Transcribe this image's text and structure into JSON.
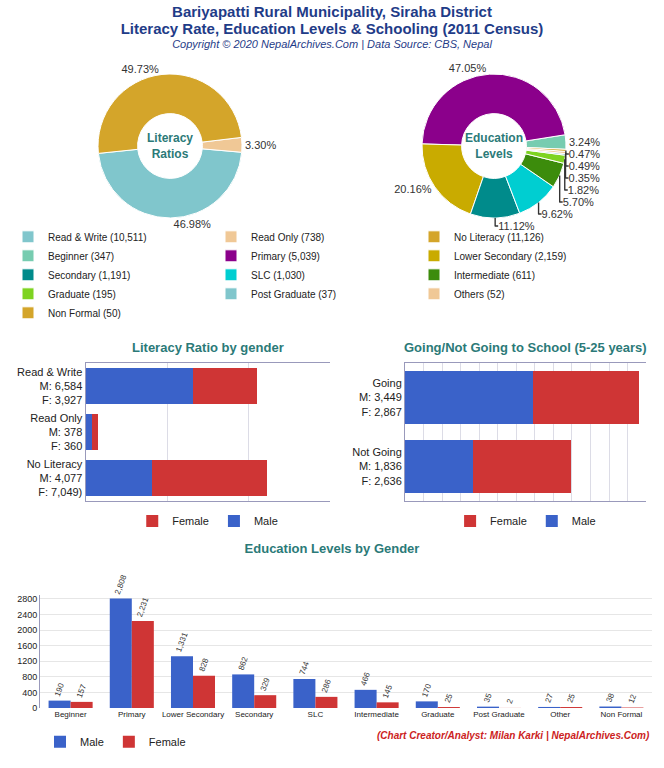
{
  "title": [
    "Bariyapatti Rural Municipality, Siraha District",
    "Literacy Rate, Education Levels & Schooling (2011 Census)"
  ],
  "subtitle": "Copyright © 2020 NepalArchives.Com | Data Source: CBS, Nepal",
  "credit": "(Chart Creator/Analyst: Milan Karki | NepalArchives.Com)",
  "chart_data": [
    {
      "type": "pie",
      "title": "Literacy Ratios",
      "categories": [
        "Read & Write (10,511)",
        "Read Only (738)",
        "No Literacy (11,126)"
      ],
      "values": [
        46.98,
        3.3,
        49.73
      ],
      "value_labels": [
        "46.98%",
        "3.30%",
        "49.73%"
      ],
      "colors": [
        "#80c6cc",
        "#f0c896",
        "#d4a52a"
      ],
      "legend": "bottom left"
    },
    {
      "type": "pie",
      "title": "Education Levels",
      "categories": [
        "Beginner (347)",
        "Primary (5,039)",
        "Lower Secondary (2,159)",
        "Secondary (1,191)",
        "SLC (1,030)",
        "Intermediate (611)",
        "Graduate (195)",
        "Post Graduate (37)",
        "Others (52)",
        "Non Formal (50)"
      ],
      "values": [
        3.24,
        47.05,
        20.16,
        11.12,
        9.62,
        5.7,
        1.82,
        0.35,
        0.49,
        0.47
      ],
      "value_labels": [
        "3.24%",
        "47.05%",
        "20.16%",
        "11.12%",
        "9.62%",
        "5.70%",
        "1.82%",
        "0.35%",
        "0.49%",
        "0.47%"
      ],
      "colors": [
        "#77ccb0",
        "#8b008b",
        "#c9ab00",
        "#008b8b",
        "#00ced1",
        "#3c8c0c",
        "#7ed321",
        "#80c6cc",
        "#f0c896",
        "#d4a52a"
      ],
      "legend": "bottom left"
    },
    {
      "type": "bar",
      "title": "Literacy Ratio by gender",
      "orientation": "horizontal",
      "stacked": true,
      "categories": [
        "Read & Write\nM: 6,584\nF: 3,927",
        "Read Only\nM: 378\nF: 360",
        "No Literacy\nM: 4,077\nF: 7,049)"
      ],
      "series": [
        {
          "name": "Male",
          "color": "#3a62c9",
          "values": [
            6584,
            378,
            4077
          ]
        },
        {
          "name": "Female",
          "color": "#cf3535",
          "values": [
            3927,
            360,
            7049
          ]
        }
      ],
      "xlim": [
        0,
        15000
      ],
      "xticks": [
        0,
        5000,
        10000,
        15000
      ],
      "grid": true,
      "tick_labels": "y",
      "legend": "bottom"
    },
    {
      "type": "bar",
      "title": "Going/Not Going to School (5-25 years)",
      "orientation": "horizontal",
      "stacked": true,
      "categories": [
        "Going\nM: 3,449\nF: 2,867",
        "Not Going\nM: 1,836\nF: 2,636"
      ],
      "series": [
        {
          "name": "Male",
          "color": "#3a62c9",
          "values": [
            3449,
            1836
          ]
        },
        {
          "name": "Female",
          "color": "#cf3535",
          "values": [
            2867,
            2636
          ]
        }
      ],
      "xlim": [
        0,
        6500
      ],
      "xticks": [
        0,
        500,
        1000,
        1500,
        2000,
        2500,
        3000,
        3500,
        4000,
        4500,
        5000,
        5500,
        6000,
        6500
      ],
      "grid": true,
      "tick_labels": "y",
      "legend": "bottom"
    },
    {
      "type": "bar",
      "title": "Education Levels by Gender",
      "categories": [
        "Beginner",
        "Primary",
        "Lower Secondary",
        "Secondary",
        "SLC",
        "Intermediate",
        "Graduate",
        "Post Graduate",
        "Other",
        "Non Formal"
      ],
      "series": [
        {
          "name": "Male",
          "color": "#3a62c9",
          "values": [
            190,
            2808,
            1331,
            862,
            744,
            466,
            170,
            35,
            27,
            38
          ],
          "value_labels": [
            "190",
            "2,808",
            "1,331",
            "862",
            "744",
            "466",
            "170",
            "35",
            "27",
            "38"
          ]
        },
        {
          "name": "Female",
          "color": "#cf3535",
          "values": [
            157,
            2231,
            828,
            329,
            286,
            145,
            25,
            2,
            25,
            12
          ],
          "value_labels": [
            "157",
            "2,231",
            "828",
            "329",
            "286",
            "145",
            "25",
            "2",
            "25",
            "12"
          ]
        }
      ],
      "ylim": [
        0,
        2900
      ],
      "yticks": [
        0,
        400,
        800,
        1200,
        1600,
        2000,
        2400,
        2800
      ],
      "grid": true,
      "data_labels": true,
      "legend": "bottom left"
    }
  ]
}
